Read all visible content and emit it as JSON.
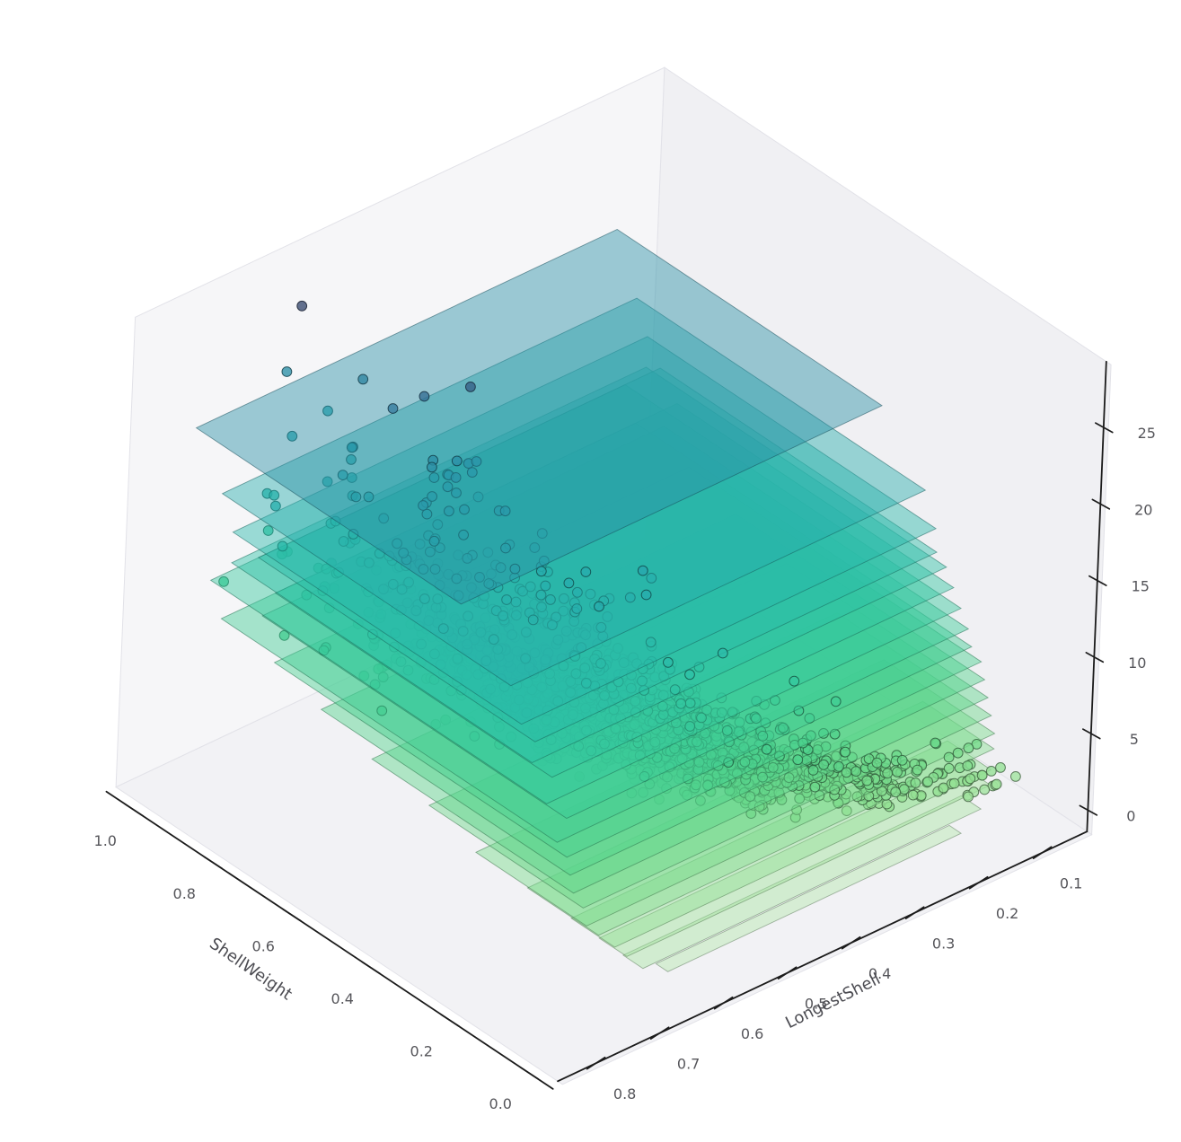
{
  "chart_data": {
    "type": "scatter3d",
    "title": "",
    "xlabel": "ShellWeight",
    "ylabel": "LongestShell",
    "zlabel": "",
    "x_tick_values": [
      1.0,
      0.8,
      0.6,
      0.4,
      0.2,
      0.0
    ],
    "x_tick_labels": [
      "1.0",
      "0.8",
      "0.6",
      "0.4",
      "0.2",
      "0.0"
    ],
    "y_tick_values": [
      0.8,
      0.7,
      0.6,
      0.5,
      0.4,
      0.3,
      0.2,
      0.1
    ],
    "y_tick_labels": [
      "0.8",
      "0.7",
      "0.6",
      "0.5",
      "0.4",
      "0.3",
      "0.2",
      "0.1"
    ],
    "z_tick_values": [
      0,
      5,
      10,
      15,
      20,
      25
    ],
    "z_tick_labels": [
      "0",
      "5",
      "10",
      "15",
      "20",
      "25"
    ],
    "x_range": [
      -0.06,
      1.07
    ],
    "y_range": [
      0.03,
      0.86
    ],
    "z_range": [
      -1.4,
      29.3
    ],
    "legend": "none",
    "grid": false,
    "pane_colors": {
      "left": "#f6f6f8",
      "back": "#f0f0f3",
      "floor": "#f2f2f5",
      "edge": "#e2e2e8"
    },
    "axis_line_color": "#1b1b1b",
    "color_domain": [
      1,
      29
    ],
    "colormap_stops": [
      [
        0.0,
        "#b4e7ae"
      ],
      [
        0.1,
        "#96e195"
      ],
      [
        0.2,
        "#6fd989"
      ],
      [
        0.3,
        "#4bd18d"
      ],
      [
        0.4,
        "#38ca9a"
      ],
      [
        0.5,
        "#2dc2a6"
      ],
      [
        0.6,
        "#27b3ad"
      ],
      [
        0.7,
        "#28a3ae"
      ],
      [
        0.79,
        "#2b8fa6"
      ],
      [
        0.875,
        "#32749a"
      ],
      [
        0.93,
        "#365e86"
      ],
      [
        1.0,
        "#394a70"
      ]
    ],
    "level_planes": [
      {
        "z": 1,
        "shellweight": [
          0.0,
          0.03
        ],
        "longestshell": [
          0.2,
          0.66
        ]
      },
      {
        "z": 2,
        "shellweight": [
          0.0,
          0.05
        ],
        "longestshell": [
          0.17,
          0.7
        ]
      },
      {
        "z": 3,
        "shellweight": [
          0.01,
          0.08
        ],
        "longestshell": [
          0.15,
          0.72
        ]
      },
      {
        "z": 4,
        "shellweight": [
          0.01,
          0.12
        ],
        "longestshell": [
          0.15,
          0.74
        ]
      },
      {
        "z": 5,
        "shellweight": [
          0.02,
          0.2
        ],
        "longestshell": [
          0.14,
          0.76
        ]
      },
      {
        "z": 6,
        "shellweight": [
          0.02,
          0.3
        ],
        "longestshell": [
          0.14,
          0.78
        ]
      },
      {
        "z": 7,
        "shellweight": [
          0.03,
          0.42
        ],
        "longestshell": [
          0.14,
          0.78
        ]
      },
      {
        "z": 8,
        "shellweight": [
          0.04,
          0.55
        ],
        "longestshell": [
          0.14,
          0.79
        ]
      },
      {
        "z": 9,
        "shellweight": [
          0.05,
          0.68
        ],
        "longestshell": [
          0.14,
          0.79
        ]
      },
      {
        "z": 10,
        "shellweight": [
          0.06,
          0.8
        ],
        "longestshell": [
          0.14,
          0.79
        ]
      },
      {
        "z": 11,
        "shellweight": [
          0.07,
          0.92
        ],
        "longestshell": [
          0.15,
          0.8
        ]
      },
      {
        "z": 12,
        "shellweight": [
          0.08,
          0.85
        ],
        "longestshell": [
          0.15,
          0.78
        ]
      },
      {
        "z": 13,
        "shellweight": [
          0.1,
          0.95
        ],
        "longestshell": [
          0.15,
          0.8
        ]
      },
      {
        "z": 14,
        "shellweight": [
          0.12,
          0.82
        ],
        "longestshell": [
          0.15,
          0.78
        ]
      },
      {
        "z": 15,
        "shellweight": [
          0.14,
          0.9
        ],
        "longestshell": [
          0.15,
          0.8
        ]
      },
      {
        "z": 16,
        "shellweight": [
          0.15,
          0.85
        ],
        "longestshell": [
          0.16,
          0.79
        ]
      },
      {
        "z": 17,
        "shellweight": [
          0.17,
          0.9
        ],
        "longestshell": [
          0.15,
          0.8
        ]
      },
      {
        "z": 19,
        "shellweight": [
          0.2,
          0.93
        ],
        "longestshell": [
          0.15,
          0.8
        ]
      },
      {
        "z": 23,
        "shellweight": [
          0.3,
          0.97
        ],
        "longestshell": [
          0.16,
          0.82
        ]
      }
    ],
    "scatter_groups": [
      {
        "rings": 3,
        "count": 8,
        "ls_mean": 0.175,
        "ls_sd": 0.035,
        "ls_range": [
          0.11,
          0.24
        ],
        "sw_range": [
          0.002,
          0.04
        ]
      },
      {
        "rings": 4,
        "count": 26,
        "ls_mean": 0.24,
        "ls_sd": 0.05,
        "ls_range": [
          0.13,
          0.35
        ],
        "sw_range": [
          0.005,
          0.07
        ]
      },
      {
        "rings": 5,
        "count": 52,
        "ls_mean": 0.3,
        "ls_sd": 0.06,
        "ls_range": [
          0.13,
          0.44
        ],
        "sw_range": [
          0.01,
          0.17
        ]
      },
      {
        "rings": 6,
        "count": 117,
        "ls_mean": 0.37,
        "ls_sd": 0.07,
        "ls_range": [
          0.16,
          0.56
        ],
        "sw_range": [
          0.015,
          0.3
        ]
      },
      {
        "rings": 7,
        "count": 176,
        "ls_mean": 0.43,
        "ls_sd": 0.07,
        "ls_range": [
          0.18,
          0.62
        ],
        "sw_range": [
          0.02,
          0.4
        ]
      },
      {
        "rings": 8,
        "count": 256,
        "ls_mean": 0.5,
        "ls_sd": 0.065,
        "ls_range": [
          0.24,
          0.7
        ],
        "sw_range": [
          0.03,
          0.56
        ]
      },
      {
        "rings": 9,
        "count": 310,
        "ls_mean": 0.53,
        "ls_sd": 0.06,
        "ls_range": [
          0.26,
          0.75
        ],
        "sw_range": [
          0.05,
          0.71
        ]
      },
      {
        "rings": 10,
        "count": 285,
        "ls_mean": 0.56,
        "ls_sd": 0.06,
        "ls_range": [
          0.29,
          0.78
        ],
        "sw_range": [
          0.06,
          0.85
        ]
      },
      {
        "rings": 11,
        "count": 219,
        "ls_mean": 0.58,
        "ls_sd": 0.06,
        "ls_range": [
          0.3,
          0.78
        ],
        "sw_range": [
          0.08,
          1.0
        ]
      },
      {
        "rings": 12,
        "count": 120,
        "ls_mean": 0.59,
        "ls_sd": 0.055,
        "ls_range": [
          0.31,
          0.73
        ],
        "sw_range": [
          0.09,
          0.85
        ]
      },
      {
        "rings": 13,
        "count": 91,
        "ls_mean": 0.6,
        "ls_sd": 0.055,
        "ls_range": [
          0.33,
          0.78
        ],
        "sw_range": [
          0.1,
          1.0
        ]
      },
      {
        "rings": 14,
        "count": 57,
        "ls_mean": 0.6,
        "ls_sd": 0.05,
        "ls_range": [
          0.35,
          0.74
        ],
        "sw_range": [
          0.13,
          0.8
        ]
      },
      {
        "rings": 15,
        "count": 46,
        "ls_mean": 0.61,
        "ls_sd": 0.05,
        "ls_range": [
          0.36,
          0.81
        ],
        "sw_range": [
          0.15,
          0.92
        ]
      },
      {
        "rings": 16,
        "count": 30,
        "ls_mean": 0.62,
        "ls_sd": 0.05,
        "ls_range": [
          0.39,
          0.77
        ],
        "sw_range": [
          0.15,
          0.85
        ]
      },
      {
        "rings": 17,
        "count": 26,
        "ls_mean": 0.62,
        "ls_sd": 0.05,
        "ls_range": [
          0.4,
          0.74
        ],
        "sw_range": [
          0.17,
          0.95
        ]
      },
      {
        "rings": 18,
        "count": 19,
        "ls_mean": 0.62,
        "ls_sd": 0.05,
        "ls_range": [
          0.42,
          0.78
        ],
        "sw_range": [
          0.16,
          0.88
        ]
      },
      {
        "rings": 19,
        "count": 14,
        "ls_mean": 0.63,
        "ls_sd": 0.045,
        "ls_range": [
          0.44,
          0.75
        ],
        "sw_range": [
          0.21,
          0.93
        ]
      },
      {
        "rings": 20,
        "count": 12,
        "ls_mean": 0.63,
        "ls_sd": 0.045,
        "ls_range": [
          0.45,
          0.8
        ],
        "sw_range": [
          0.24,
          0.97
        ]
      },
      {
        "rings": 21,
        "count": 6,
        "ls_mean": 0.64,
        "ls_sd": 0.04,
        "ls_range": [
          0.47,
          0.74
        ],
        "sw_range": [
          0.26,
          0.83
        ]
      },
      {
        "rings": 22,
        "count": 3,
        "ls_mean": 0.64,
        "ls_sd": 0.04,
        "ls_range": [
          0.45,
          0.72
        ],
        "sw_range": [
          0.28,
          0.84
        ]
      },
      {
        "rings": 23,
        "count": 4,
        "ls_mean": 0.65,
        "ls_sd": 0.04,
        "ls_range": [
          0.49,
          0.77
        ],
        "sw_range": [
          0.31,
          1.0
        ]
      },
      {
        "rings": 24,
        "count": 1,
        "ls_mean": 0.63,
        "ls_sd": 0.01,
        "ls_range": [
          0.61,
          0.65
        ],
        "sw_range": [
          0.83,
          0.87
        ]
      },
      {
        "rings": 25,
        "count": 1,
        "ls_mean": 0.66,
        "ls_sd": 0.01,
        "ls_range": [
          0.64,
          0.68
        ],
        "sw_range": [
          0.7,
          0.74
        ]
      },
      {
        "rings": 26,
        "count": 1,
        "ls_mean": 0.62,
        "ls_sd": 0.01,
        "ls_range": [
          0.6,
          0.64
        ],
        "sw_range": [
          0.7,
          0.74
        ]
      },
      {
        "rings": 27,
        "count": 1,
        "ls_mean": 0.6,
        "ls_sd": 0.01,
        "ls_range": [
          0.58,
          0.62
        ],
        "sw_range": [
          0.6,
          0.64
        ]
      },
      {
        "rings": 29,
        "count": 1,
        "ls_mean": 0.7,
        "ls_sd": 0.01,
        "ls_range": [
          0.68,
          0.72
        ],
        "sw_range": [
          0.93,
          0.97
        ]
      }
    ],
    "marker": {
      "radius": 5.4,
      "fill_opacity": 0.78,
      "edge_opacity": 0.85
    },
    "plane_style": {
      "fill_opacity": 0.45,
      "edge_opacity": 0.55
    }
  }
}
